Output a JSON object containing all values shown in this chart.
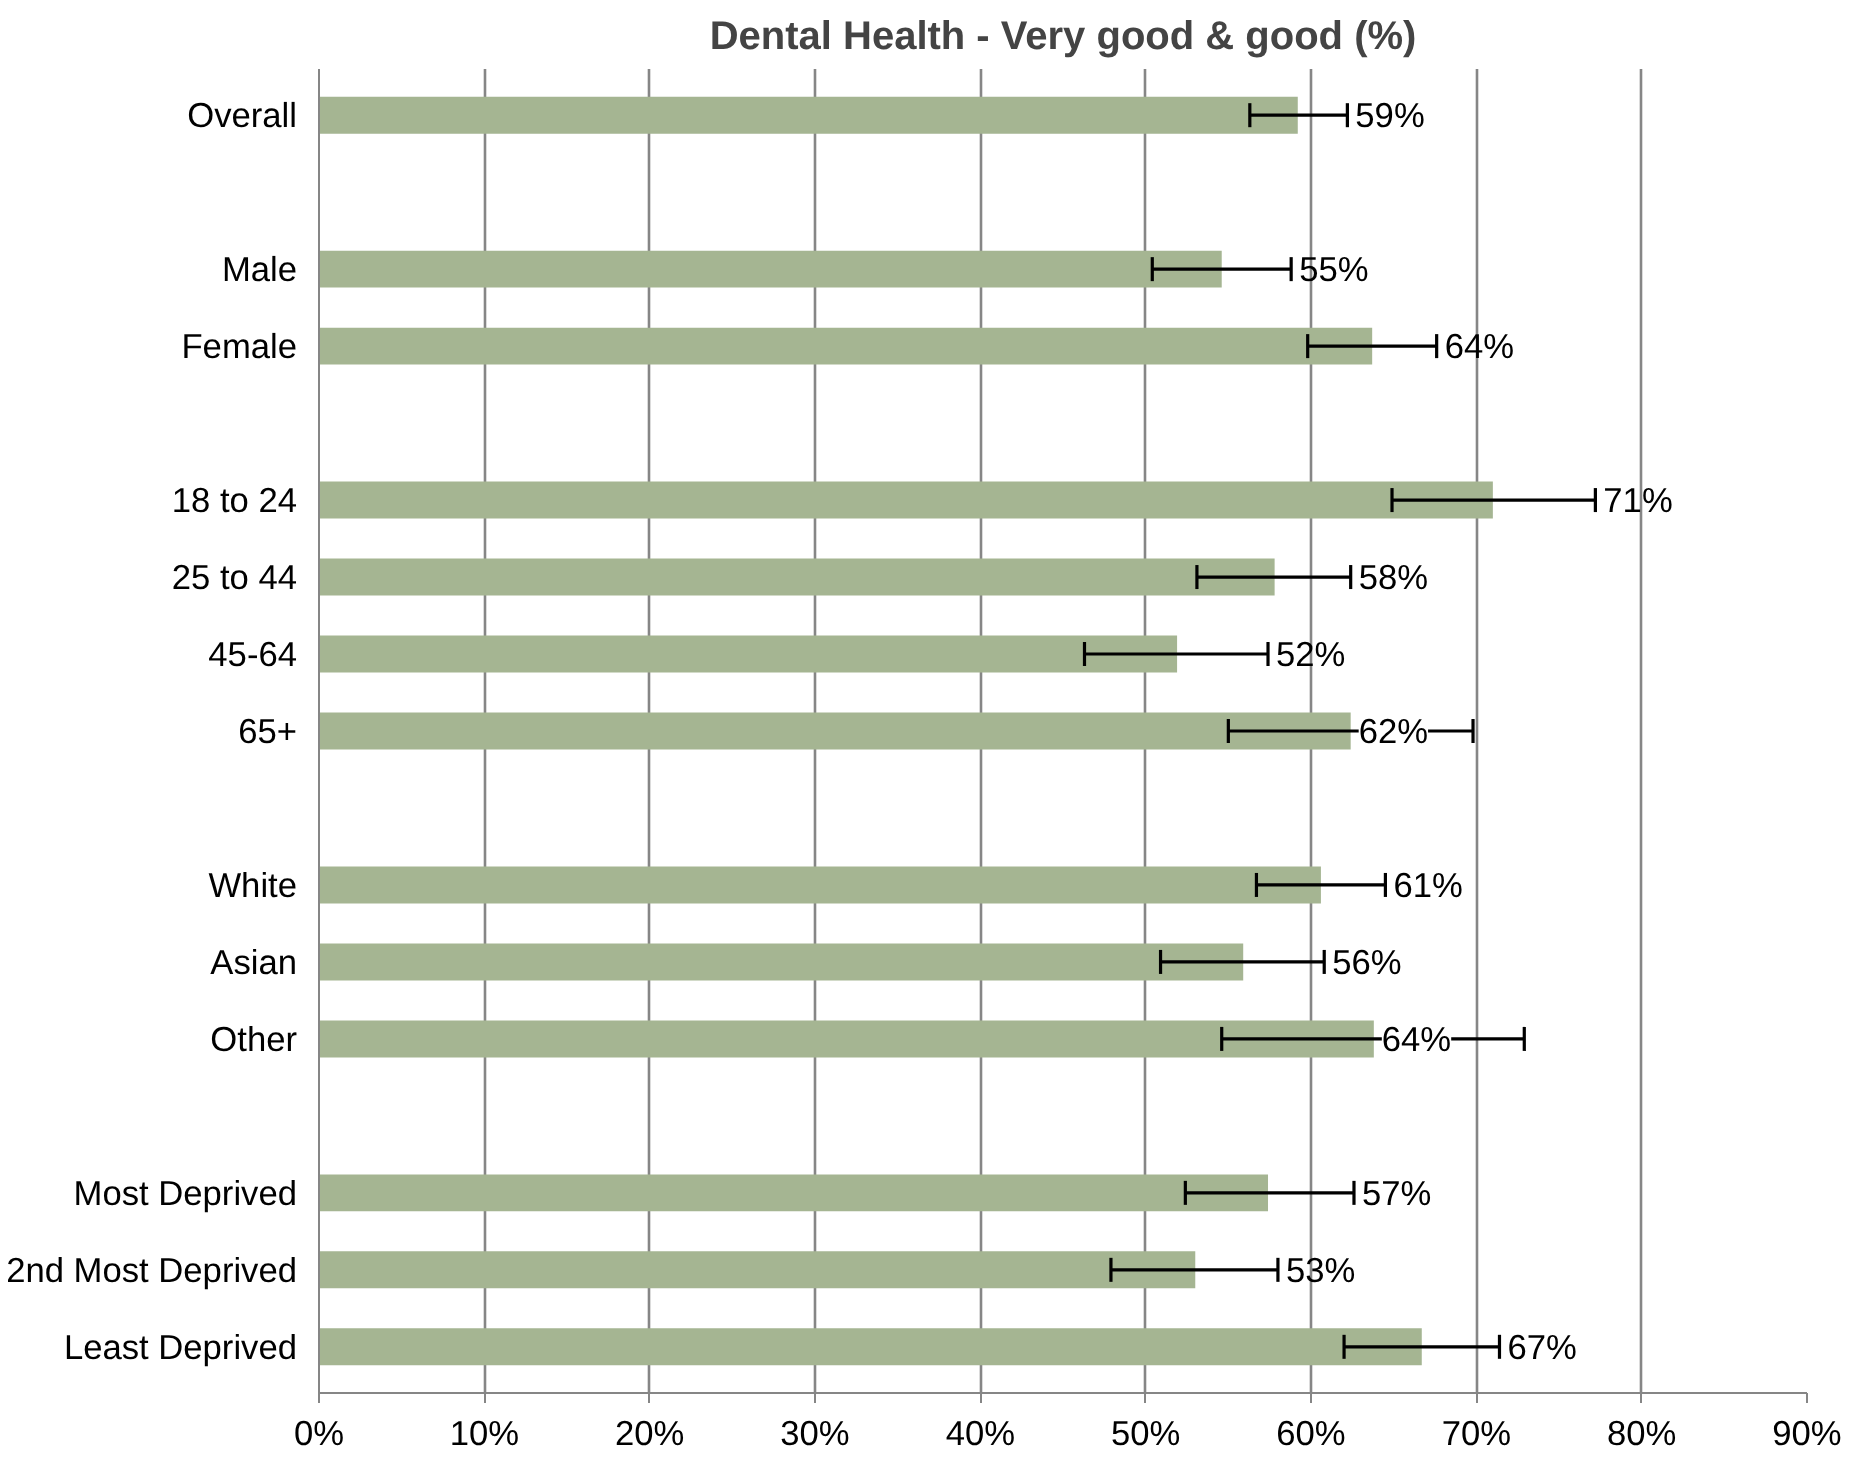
{
  "chart_data": {
    "type": "bar",
    "orientation": "horizontal",
    "title": "Dental Health - Very good & good (%)",
    "categories": [
      "Overall",
      null,
      "Male",
      "Female",
      null,
      "18 to 24",
      "25 to 44",
      "45-64",
      "65+",
      null,
      "White",
      "Asian",
      "Other",
      null,
      "Most Deprived",
      "2nd Most Deprived",
      "Least Deprived"
    ],
    "values": [
      59.2,
      null,
      54.6,
      63.7,
      null,
      71.0,
      57.8,
      51.9,
      62.4,
      null,
      60.6,
      55.9,
      63.8,
      null,
      57.4,
      53.0,
      66.7
    ],
    "errors": [
      [
        56.3,
        62.2
      ],
      null,
      [
        50.4,
        58.8
      ],
      [
        59.8,
        67.6
      ],
      null,
      [
        64.9,
        77.2
      ],
      [
        53.1,
        62.4
      ],
      [
        46.3,
        57.4
      ],
      [
        55.0,
        69.8
      ],
      null,
      [
        56.7,
        64.5
      ],
      [
        50.9,
        60.8
      ],
      [
        54.6,
        72.9
      ],
      null,
      [
        52.4,
        62.6
      ],
      [
        47.9,
        58.0
      ],
      [
        62.0,
        71.4
      ]
    ],
    "value_labels": [
      "59%",
      null,
      "55%",
      "64%",
      null,
      "71%",
      "58%",
      "52%",
      "62%",
      null,
      "61%",
      "56%",
      "64%",
      null,
      "57%",
      "53%",
      "67%"
    ],
    "color": "#a5b592",
    "xlim": [
      0,
      90
    ],
    "xticks": [
      {
        "value": 0,
        "label": "0%"
      },
      {
        "value": 10,
        "label": "10%"
      },
      {
        "value": 20,
        "label": "20%"
      },
      {
        "value": 30,
        "label": "30%"
      },
      {
        "value": 40,
        "label": "40%"
      },
      {
        "value": 50,
        "label": "50%"
      },
      {
        "value": 60,
        "label": "60%"
      },
      {
        "value": 70,
        "label": "70%"
      },
      {
        "value": 80,
        "label": "80%"
      },
      {
        "value": 90,
        "label": "90%"
      }
    ],
    "grid": "x"
  }
}
